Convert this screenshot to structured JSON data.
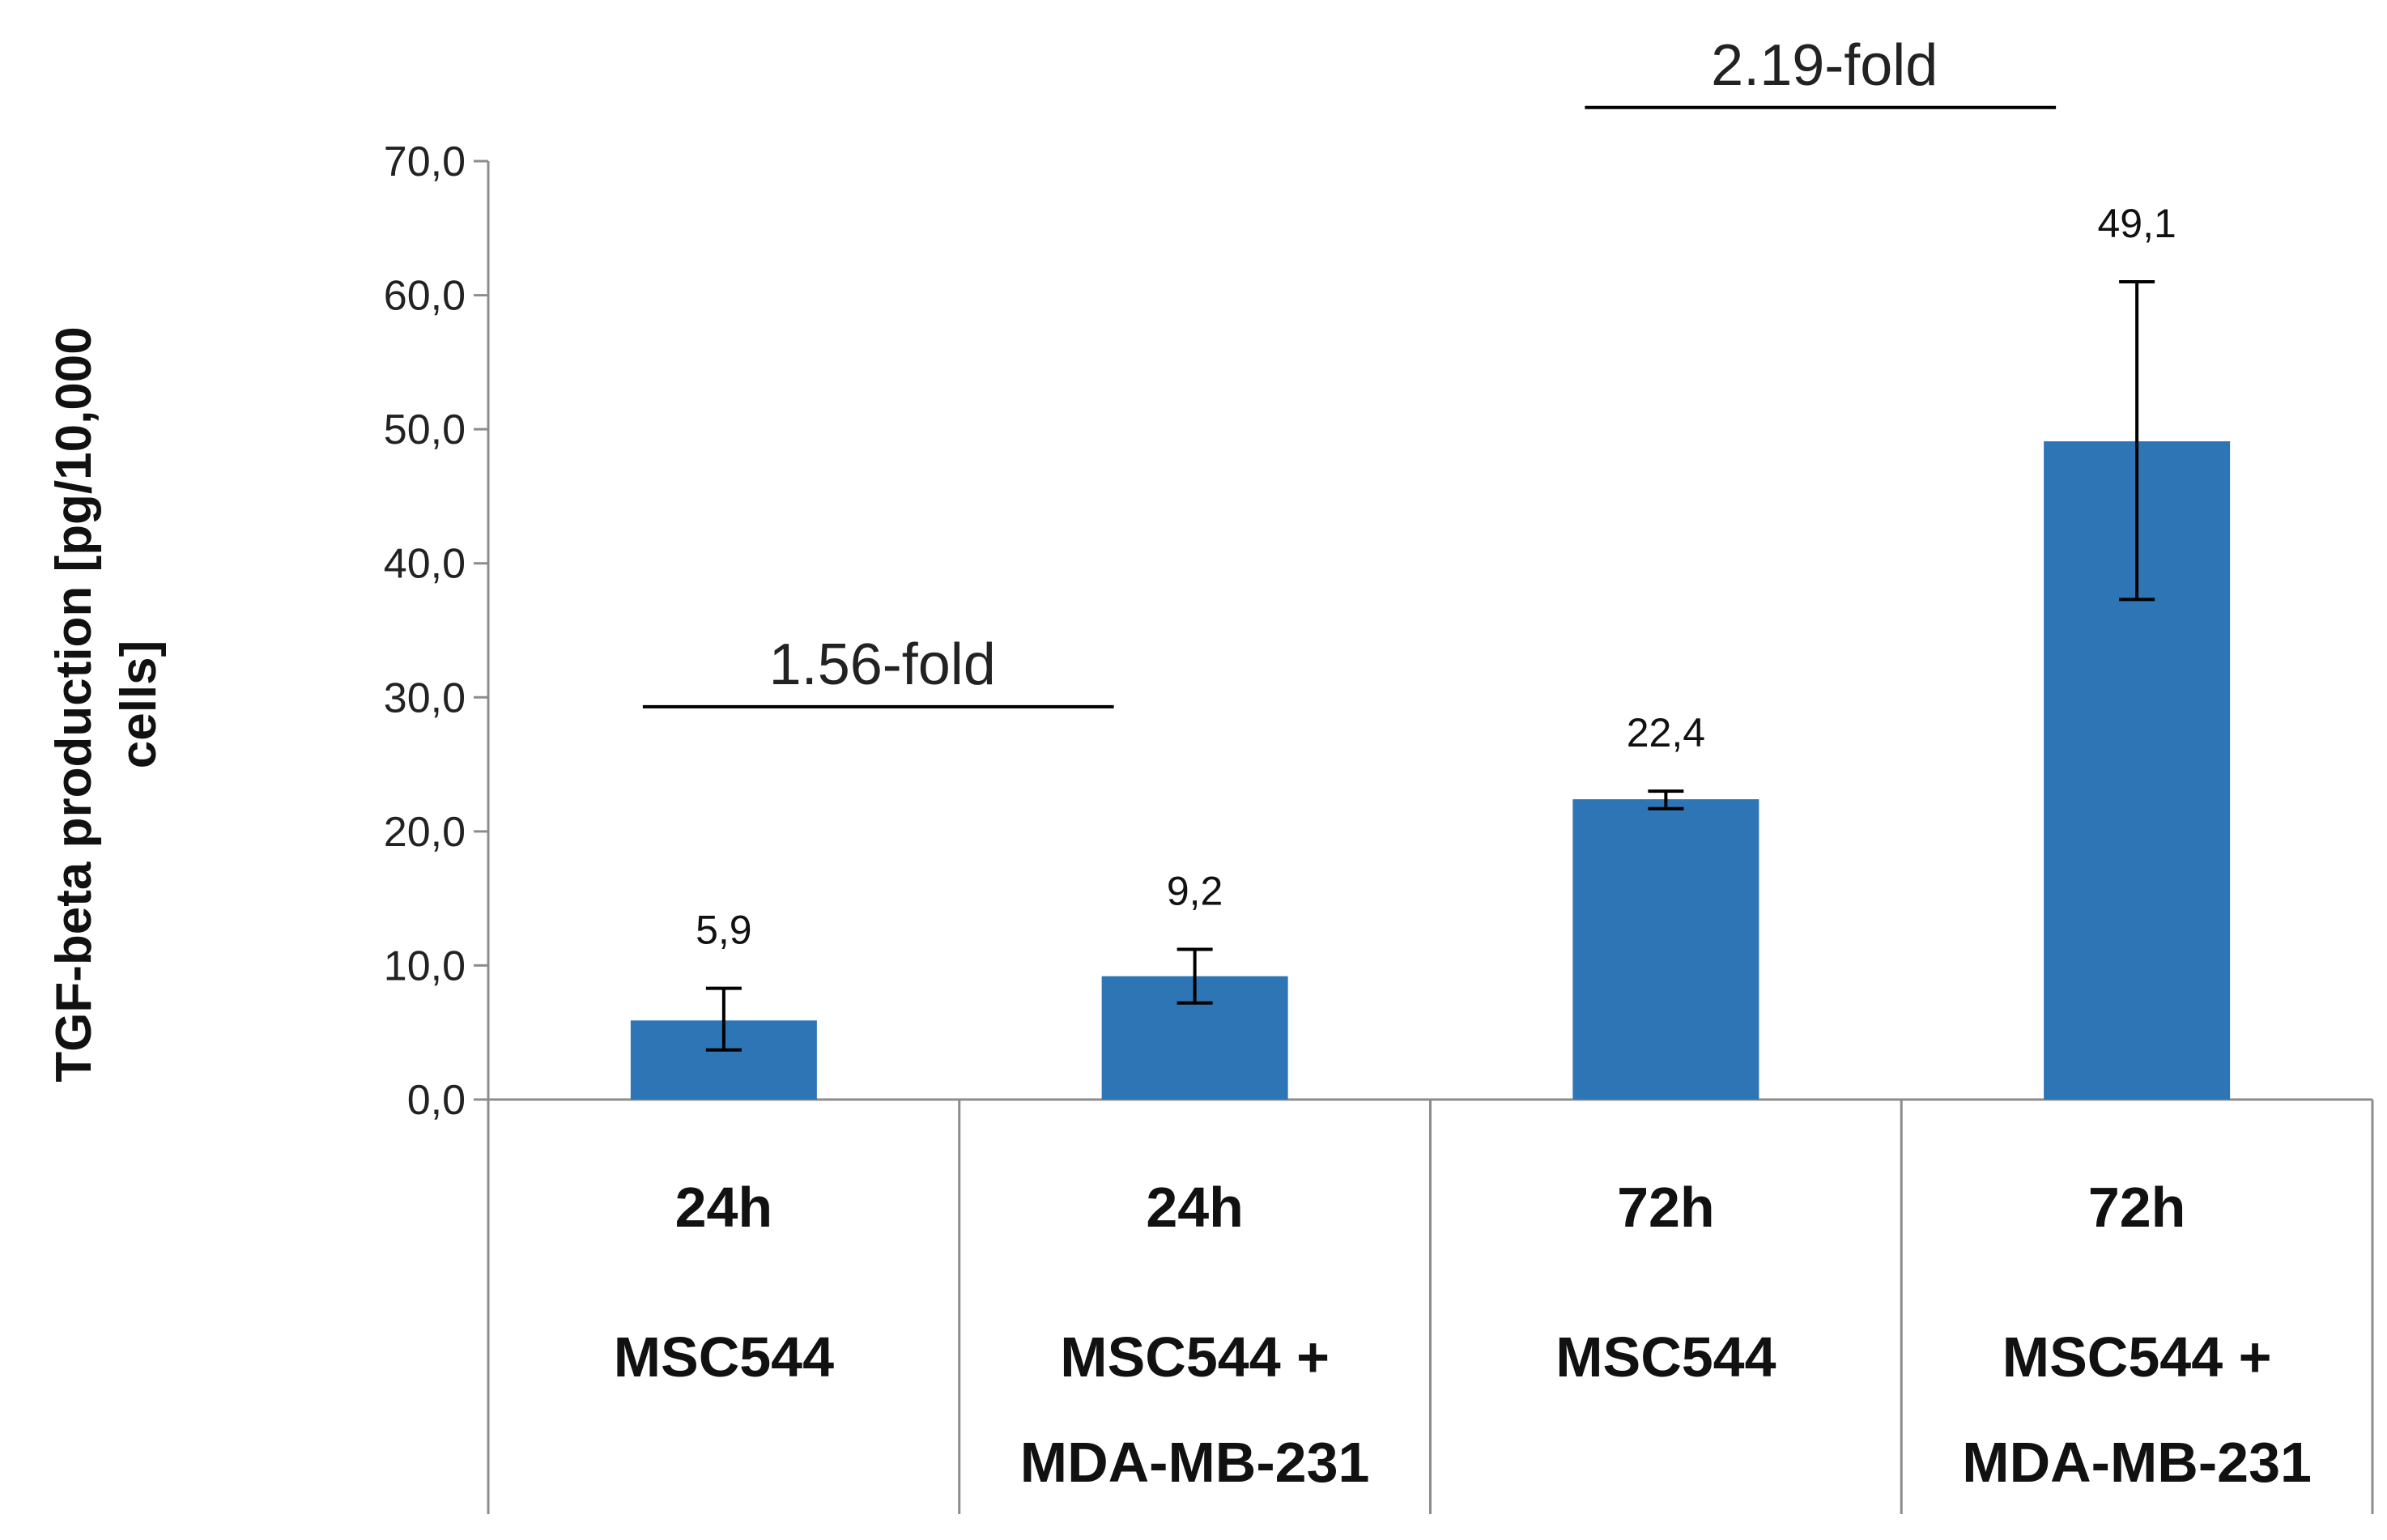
{
  "chart_data": {
    "type": "bar",
    "ylabel_lines": [
      "TGF-beta production [pg/10,000",
      "cells]"
    ],
    "ylim": [
      0,
      70
    ],
    "yticks": [
      0,
      10,
      20,
      30,
      40,
      50,
      60,
      70
    ],
    "ytick_labels": [
      "0,0",
      "10,0",
      "20,0",
      "30,0",
      "40,0",
      "50,0",
      "60,0",
      "70,0"
    ],
    "categories": [
      {
        "time": "24h",
        "lines": [
          "MSC544"
        ]
      },
      {
        "time": "24h",
        "lines": [
          "MSC544 +",
          "MDA-MB-231"
        ]
      },
      {
        "time": "72h",
        "lines": [
          "MSC544"
        ]
      },
      {
        "time": "72h",
        "lines": [
          "MSC544 +",
          "MDA-MB-231"
        ]
      }
    ],
    "values": [
      5.9,
      9.2,
      22.4,
      49.1
    ],
    "value_labels": [
      "5,9",
      "9,2",
      "22,4",
      "49,1"
    ],
    "error_low": [
      3.7,
      7.2,
      21.7,
      37.3
    ],
    "error_high": [
      8.3,
      11.2,
      23.0,
      61.0
    ],
    "bar_color": "#2E75B6",
    "annotations": [
      {
        "text": "1.56-fold",
        "from_category": 0,
        "to_category": 1,
        "y": 29.3
      },
      {
        "text": "2.19-fold",
        "from_category": 2,
        "to_category": 3,
        "y": 74.0
      }
    ],
    "grid": false
  }
}
